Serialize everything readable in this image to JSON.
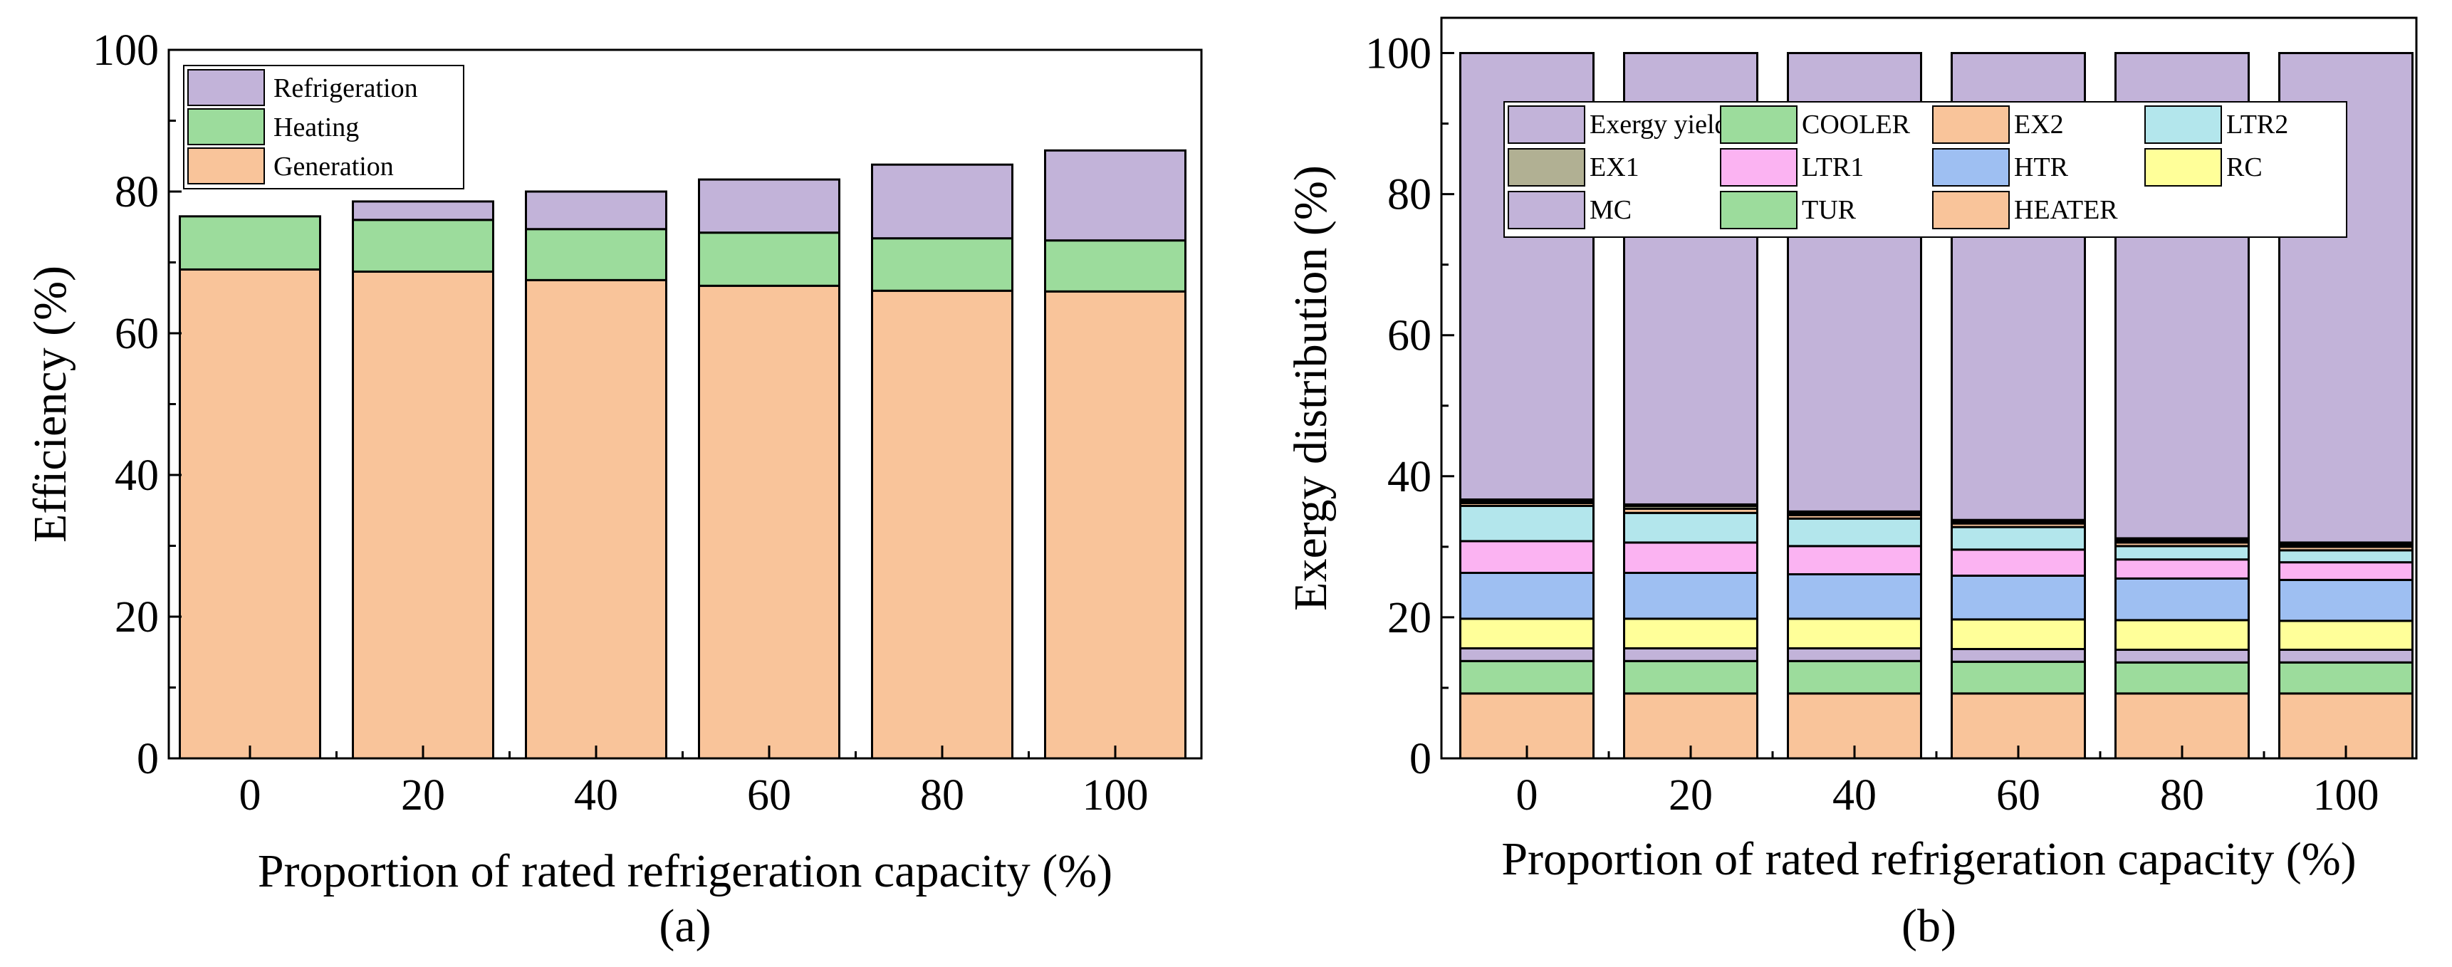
{
  "chart_data": [
    {
      "type": "bar",
      "stacked": true,
      "panel_label": "(a)",
      "xlabel": "Proportion of rated refrigeration capacity (%)",
      "ylabel": "Efficiency (%)",
      "ylim": [
        0,
        100
      ],
      "yticks": [
        0,
        20,
        40,
        60,
        80,
        100
      ],
      "categories": [
        "0",
        "20",
        "40",
        "60",
        "80",
        "100"
      ],
      "legend_position": "top-left",
      "series": [
        {
          "name": "Generation",
          "color": "#f9c49a",
          "values": [
            69.0,
            68.7,
            67.5,
            66.7,
            66.0,
            65.9
          ]
        },
        {
          "name": "Heating",
          "color": "#9cdc9c",
          "values": [
            7.5,
            7.3,
            7.2,
            7.5,
            7.4,
            7.2
          ]
        },
        {
          "name": "Refrigeration",
          "color": "#c2b3d9",
          "values": [
            0.0,
            2.6,
            5.3,
            7.5,
            10.4,
            12.7
          ]
        }
      ],
      "legend_order": [
        "Refrigeration",
        "Heating",
        "Generation"
      ]
    },
    {
      "type": "bar",
      "stacked": true,
      "panel_label": "(b)",
      "xlabel": "Proportion of rated refrigeration capacity (%)",
      "ylabel": "Exergy distribution (%)",
      "ylim": [
        0,
        105
      ],
      "yticks": [
        0,
        20,
        40,
        60,
        80,
        100
      ],
      "categories": [
        "0",
        "20",
        "40",
        "60",
        "80",
        "100"
      ],
      "legend_position": "top",
      "series": [
        {
          "name": "HEATER",
          "color": "#f9c49a",
          "values": [
            9.2,
            9.2,
            9.2,
            9.2,
            9.2,
            9.2
          ]
        },
        {
          "name": "TUR",
          "color": "#9cdc9c",
          "values": [
            4.6,
            4.6,
            4.6,
            4.5,
            4.4,
            4.4
          ]
        },
        {
          "name": "MC",
          "color": "#c2b3d9",
          "values": [
            1.8,
            1.8,
            1.8,
            1.8,
            1.8,
            1.8
          ]
        },
        {
          "name": "RC",
          "color": "#ffff99",
          "values": [
            4.2,
            4.2,
            4.2,
            4.2,
            4.2,
            4.1
          ]
        },
        {
          "name": "HTR",
          "color": "#9ebff2",
          "values": [
            6.5,
            6.5,
            6.3,
            6.2,
            5.9,
            5.8
          ]
        },
        {
          "name": "LTR1",
          "color": "#fbb3f2",
          "values": [
            4.5,
            4.3,
            4.0,
            3.7,
            2.7,
            2.5
          ]
        },
        {
          "name": "LTR2",
          "color": "#b3e6ec",
          "values": [
            5.0,
            4.2,
            3.9,
            3.2,
            1.9,
            1.7
          ]
        },
        {
          "name": "EX2",
          "color": "#f9c49a",
          "values": [
            0.4,
            0.6,
            0.5,
            0.5,
            0.5,
            0.5
          ]
        },
        {
          "name": "EX1",
          "color": "#b1b093",
          "values": [
            0.3,
            0.4,
            0.3,
            0.3,
            0.3,
            0.3
          ]
        },
        {
          "name": "COOLER",
          "color": "#9cdc9c",
          "values": [
            0.2,
            0.2,
            0.2,
            0.2,
            0.3,
            0.3
          ]
        },
        {
          "name": "Exergy yield",
          "color": "#c2b3d9",
          "values": [
            63.3,
            64.0,
            65.0,
            66.2,
            68.8,
            69.4
          ]
        }
      ],
      "legend_order": [
        "Exergy yield",
        "COOLER",
        "EX2",
        "LTR2",
        "EX1",
        "LTR1",
        "HTR",
        "RC",
        "MC",
        "TUR",
        "HEATER"
      ]
    }
  ]
}
